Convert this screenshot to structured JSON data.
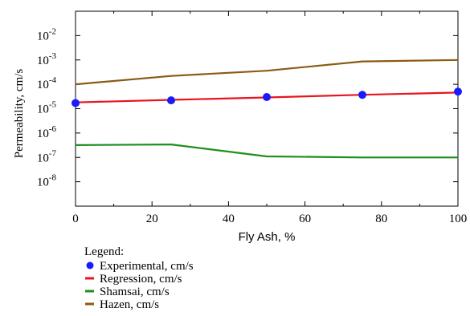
{
  "chart_data": {
    "type": "line",
    "xlabel": "Fly Ash, %",
    "ylabel": "Permeability, cm/s",
    "xlim": [
      0,
      100
    ],
    "ylim_log10": [
      -9,
      -1
    ],
    "y_scale": "log",
    "grid": false,
    "legend_position": "below-left",
    "x_ticks": [
      "0",
      "20",
      "40",
      "60",
      "80",
      "100"
    ],
    "y_ticks": [
      {
        "base": "10",
        "exp": "-2",
        "log10": -2
      },
      {
        "base": "10",
        "exp": "-3",
        "log10": -3
      },
      {
        "base": "10",
        "exp": "-4",
        "log10": -4
      },
      {
        "base": "10",
        "exp": "-5",
        "log10": -5
      },
      {
        "base": "10",
        "exp": "-6",
        "log10": -6
      },
      {
        "base": "10",
        "exp": "-7",
        "log10": -7
      },
      {
        "base": "10",
        "exp": "-8",
        "log10": -8
      }
    ],
    "legend_title": "Legend:",
    "series": [
      {
        "name": "Experimental, cm/s",
        "kind": "scatter",
        "color": "#1a1aff",
        "x": [
          0,
          25,
          50,
          75,
          100
        ],
        "y": [
          1.7e-05,
          2.2e-05,
          3e-05,
          3.7e-05,
          5e-05
        ]
      },
      {
        "name": "Regression, cm/s",
        "kind": "line",
        "color": "#e8141e",
        "x": [
          0,
          25,
          50,
          75,
          100
        ],
        "y": [
          1.8e-05,
          2.3e-05,
          2.9e-05,
          3.7e-05,
          4.6e-05
        ]
      },
      {
        "name": "Shamsai, cm/s",
        "kind": "line",
        "color": "#1f8f1f",
        "x": [
          0,
          25,
          50,
          75,
          100
        ],
        "y": [
          3.2e-07,
          3.4e-07,
          1.1e-07,
          1e-07,
          1e-07
        ]
      },
      {
        "name": "Hazen, cm/s",
        "kind": "line",
        "color": "#8b5a14",
        "x": [
          0,
          25,
          50,
          75,
          100
        ],
        "y": [
          0.0001,
          0.00022,
          0.00036,
          0.00087,
          0.001
        ]
      }
    ]
  }
}
